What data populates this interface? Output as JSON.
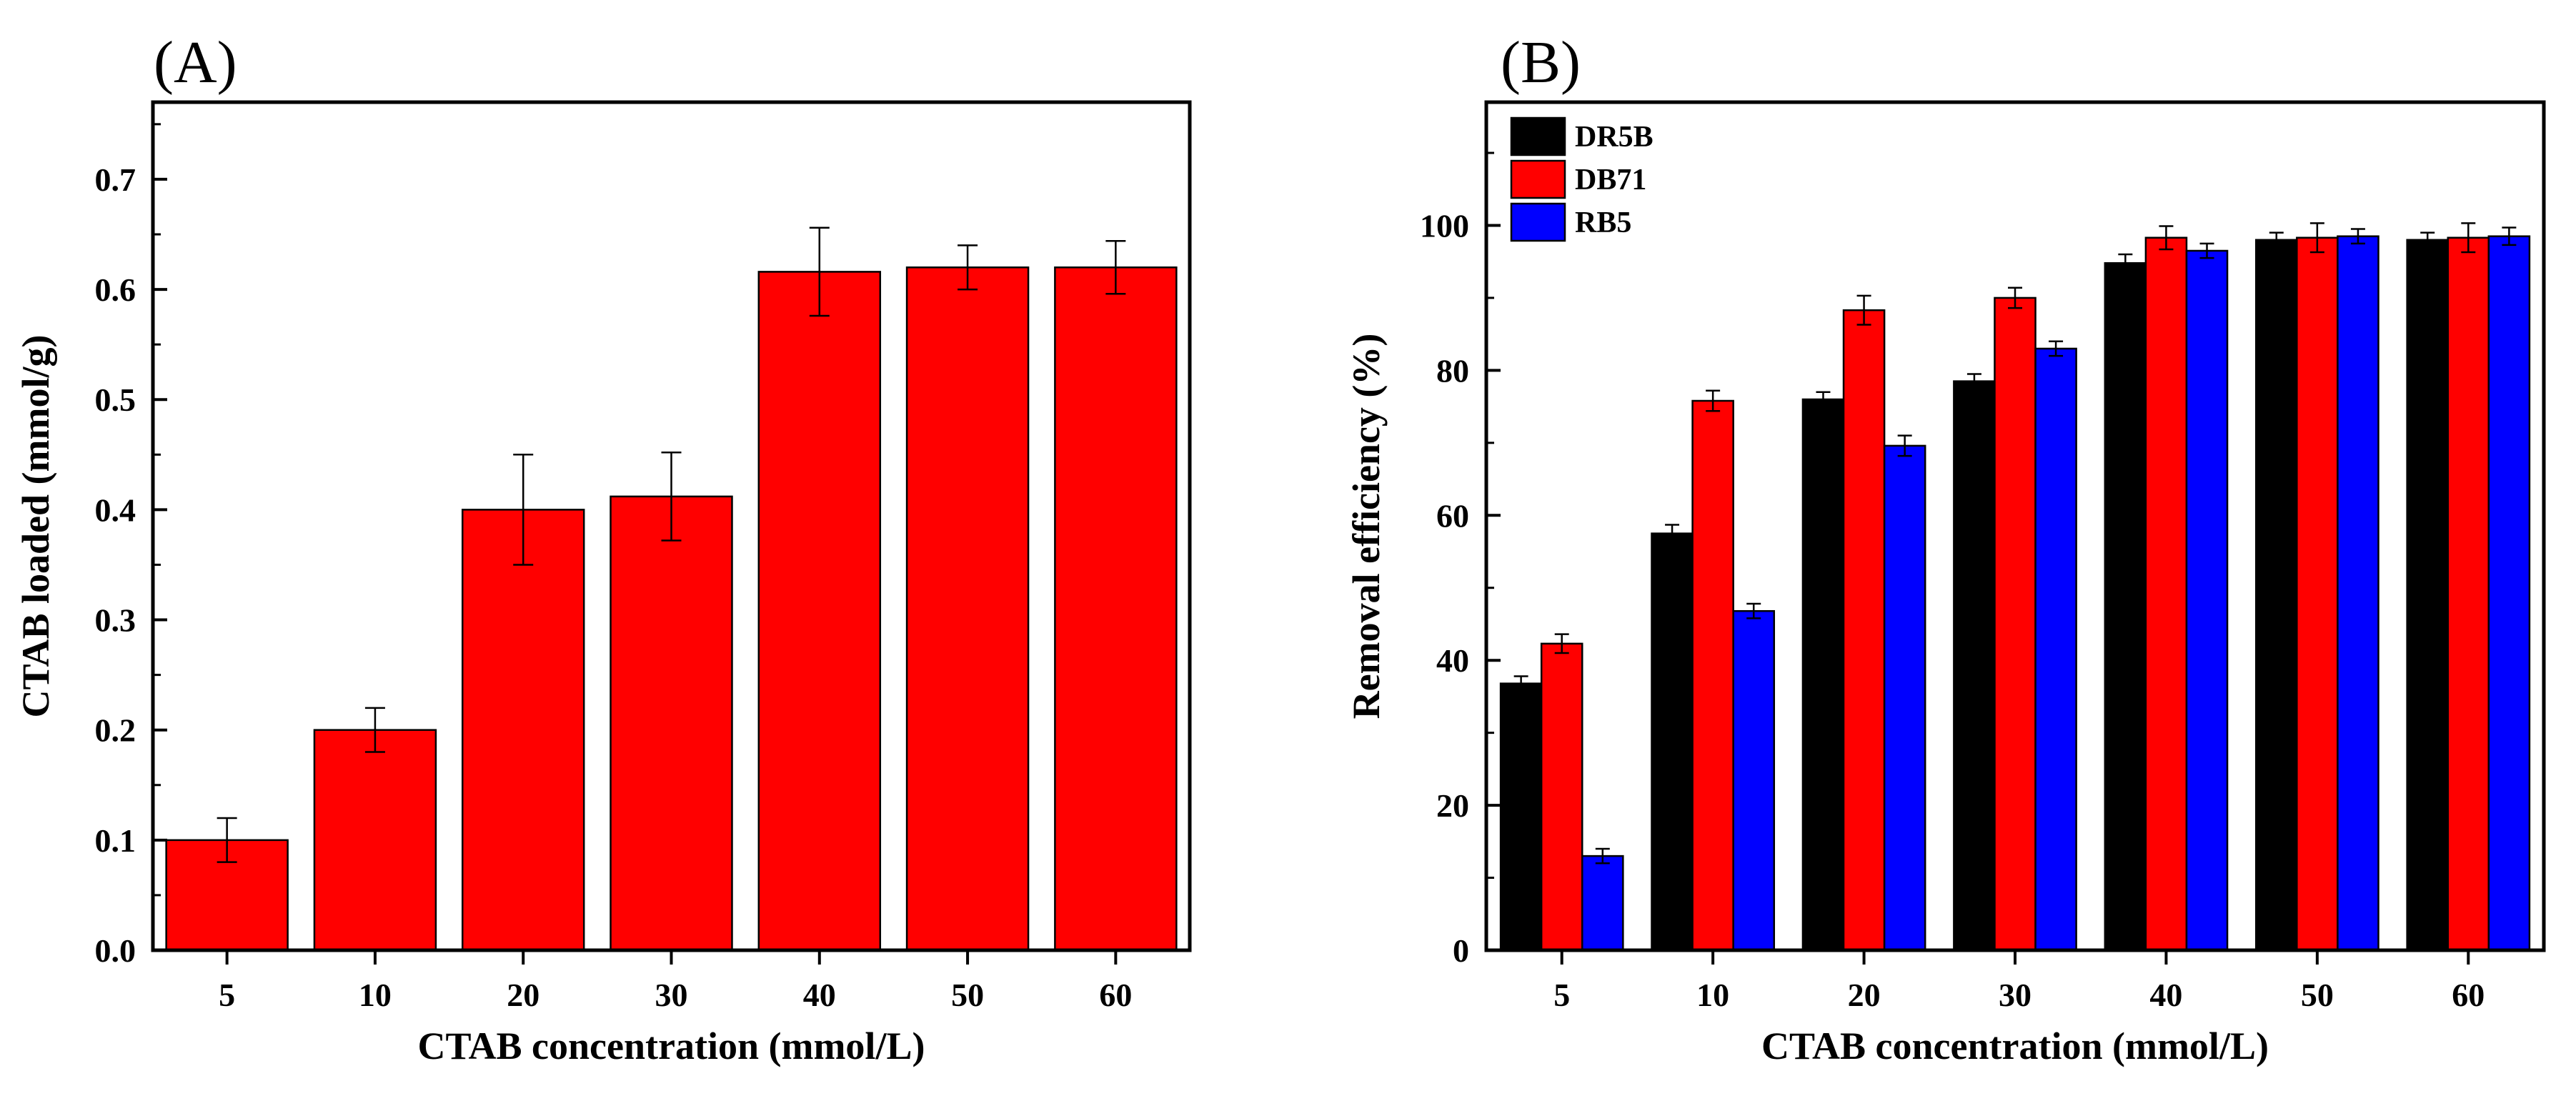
{
  "chart_data": [
    {
      "panel_label": "(A)",
      "type": "bar",
      "title": "",
      "xlabel": "CTAB concentration (mmol/L)",
      "ylabel": "CTAB loaded (mmol/g)",
      "ylim": [
        0,
        0.77
      ],
      "yticks": [
        "0.0",
        "0.1",
        "0.2",
        "0.3",
        "0.4",
        "0.5",
        "0.6",
        "0.7"
      ],
      "categories": [
        "5",
        "10",
        "20",
        "30",
        "40",
        "50",
        "60"
      ],
      "series": [
        {
          "name": "CTAB loaded",
          "color": "#ff0000",
          "values": [
            0.1,
            0.2,
            0.4,
            0.412,
            0.616,
            0.62,
            0.62
          ],
          "errors": [
            0.02,
            0.02,
            0.05,
            0.04,
            0.04,
            0.02,
            0.024
          ]
        }
      ],
      "grid": false,
      "legend": null
    },
    {
      "panel_label": "(B)",
      "type": "bar",
      "title": "",
      "xlabel": "CTAB concentration (mmol/L)",
      "ylabel": "Removal efficiency (%)",
      "ylim": [
        0,
        117
      ],
      "yticks": [
        "0",
        "20",
        "40",
        "60",
        "80",
        "100"
      ],
      "categories": [
        "5",
        "10",
        "20",
        "30",
        "40",
        "50",
        "60"
      ],
      "series": [
        {
          "name": "DR5B",
          "color": "#000000",
          "values": [
            36.8,
            57.5,
            76.0,
            78.5,
            94.8,
            98.0,
            98.0
          ],
          "errors": [
            1.0,
            1.2,
            1.0,
            1.0,
            1.2,
            1.0,
            1.0
          ]
        },
        {
          "name": "DB71",
          "color": "#ff0000",
          "values": [
            42.3,
            75.8,
            88.3,
            90.0,
            98.3,
            98.3,
            98.3
          ],
          "errors": [
            1.3,
            1.4,
            2.0,
            1.4,
            1.6,
            2.0,
            2.0
          ]
        },
        {
          "name": "RB5",
          "color": "#0000ff",
          "values": [
            13.0,
            46.8,
            69.6,
            83.0,
            96.5,
            98.5,
            98.5
          ],
          "errors": [
            1.0,
            1.0,
            1.4,
            1.0,
            1.0,
            1.0,
            1.2
          ]
        }
      ],
      "grid": false,
      "legend": "top-left"
    }
  ]
}
